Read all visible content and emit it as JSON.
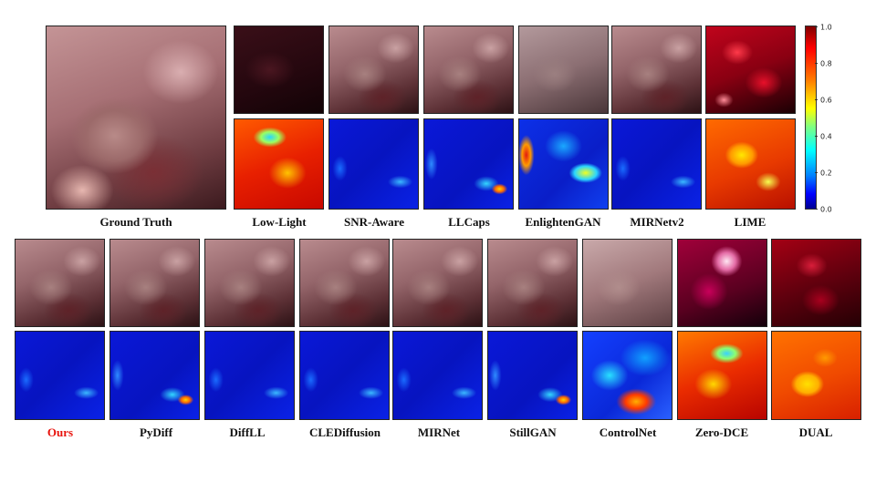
{
  "top_row": {
    "ground_truth_label": "Ground Truth",
    "methods": [
      {
        "label": "Low-Light"
      },
      {
        "label": "SNR-Aware"
      },
      {
        "label": "LLCaps"
      },
      {
        "label": "EnlightenGAN"
      },
      {
        "label": "MIRNetv2"
      },
      {
        "label": "LIME"
      }
    ]
  },
  "bottom_row": {
    "methods": [
      {
        "label": "Ours",
        "highlight": true
      },
      {
        "label": "PyDiff"
      },
      {
        "label": "DiffLL"
      },
      {
        "label": "CLEDiffusion"
      },
      {
        "label": "MIRNet"
      },
      {
        "label": "StillGAN"
      },
      {
        "label": "ControlNet"
      },
      {
        "label": "Zero-DCE"
      },
      {
        "label": "DUAL"
      }
    ]
  },
  "colorbar": {
    "ticks": [
      "1.0",
      "0.8",
      "0.6",
      "0.4",
      "0.2",
      "0.0"
    ],
    "colormap": "jet"
  },
  "colors": {
    "highlight_label": "#e8120c",
    "label": "#111111"
  }
}
